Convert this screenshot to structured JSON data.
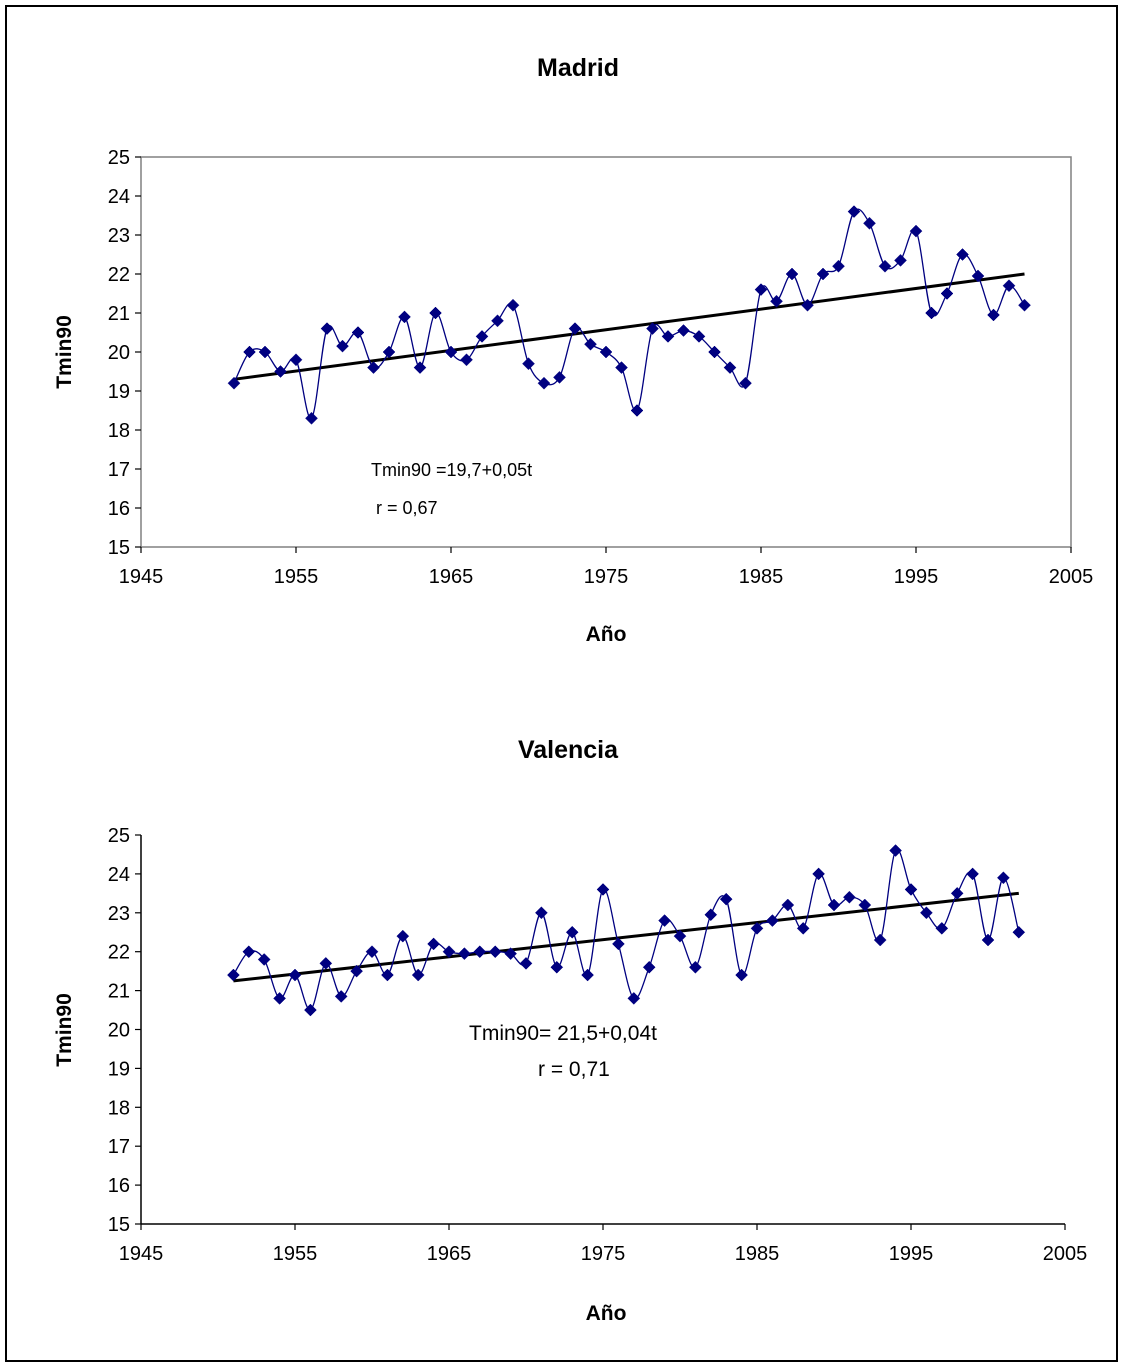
{
  "chart_data": [
    {
      "type": "line",
      "title": "Madrid",
      "xlabel": "Año",
      "ylabel": "Tmin90",
      "xlim": [
        1945,
        2005
      ],
      "ylim": [
        15,
        25
      ],
      "x_ticks": [
        "1945",
        "1955",
        "1965",
        "1975",
        "1985",
        "1995",
        "2005"
      ],
      "y_ticks": [
        "15",
        "16",
        "17",
        "18",
        "19",
        "20",
        "21",
        "22",
        "23",
        "24",
        "25"
      ],
      "series": [
        {
          "x": [
            1951,
            1952,
            1953,
            1954,
            1955,
            1956,
            1957,
            1958,
            1959,
            1960,
            1961,
            1962,
            1963,
            1964,
            1965,
            1966,
            1967,
            1968,
            1969,
            1970,
            1971,
            1972,
            1973,
            1974,
            1975,
            1976,
            1977,
            1978,
            1979,
            1980,
            1981,
            1982,
            1983,
            1984,
            1985,
            1986,
            1987,
            1988,
            1989,
            1990,
            1991,
            1992,
            1993,
            1994,
            1995,
            1996,
            1997,
            1998,
            1999,
            2000,
            2001,
            2002
          ],
          "values": [
            19.2,
            20.0,
            20.0,
            19.5,
            19.8,
            18.3,
            20.6,
            20.15,
            20.5,
            19.6,
            20.0,
            20.9,
            19.6,
            21.0,
            20.0,
            19.8,
            20.4,
            20.8,
            21.2,
            19.7,
            19.2,
            19.35,
            20.6,
            20.2,
            20.0,
            19.6,
            18.5,
            20.6,
            20.4,
            20.55,
            20.4,
            20.0,
            19.6,
            19.2,
            21.6,
            21.3,
            22.0,
            21.2,
            22.0,
            22.2,
            23.6,
            23.3,
            22.2,
            22.35,
            23.1,
            21.0,
            21.5,
            22.5,
            21.95,
            20.95,
            21.7,
            21.2
          ],
          "color": "#000080"
        }
      ],
      "trend": {
        "x": [
          1951,
          2002
        ],
        "y": [
          19.3,
          22.0
        ],
        "color": "#000000"
      },
      "annotations": [
        "Tmin90 =19,7+0,05t",
        "r = 0,67"
      ]
    },
    {
      "type": "line",
      "title": "Valencia",
      "xlabel": "Año",
      "ylabel": "Tmin90",
      "xlim": [
        1945,
        2005
      ],
      "ylim": [
        15,
        25
      ],
      "x_ticks": [
        "1945",
        "1955",
        "1965",
        "1975",
        "1985",
        "1995",
        "2005"
      ],
      "y_ticks": [
        "15",
        "16",
        "17",
        "18",
        "19",
        "20",
        "21",
        "22",
        "23",
        "24",
        "25"
      ],
      "series": [
        {
          "x": [
            1951,
            1952,
            1953,
            1954,
            1955,
            1956,
            1957,
            1958,
            1959,
            1960,
            1961,
            1962,
            1963,
            1964,
            1965,
            1966,
            1967,
            1968,
            1969,
            1970,
            1971,
            1972,
            1973,
            1974,
            1975,
            1976,
            1977,
            1978,
            1979,
            1980,
            1981,
            1982,
            1983,
            1984,
            1985,
            1986,
            1987,
            1988,
            1989,
            1990,
            1991,
            1992,
            1993,
            1994,
            1995,
            1996,
            1997,
            1998,
            1999,
            2000,
            2001,
            2002
          ],
          "values": [
            21.4,
            22.0,
            21.8,
            20.8,
            21.4,
            20.5,
            21.7,
            20.85,
            21.5,
            22.0,
            21.4,
            22.4,
            21.4,
            22.2,
            22.0,
            21.95,
            22.0,
            22.0,
            21.95,
            21.7,
            23.0,
            21.6,
            22.5,
            21.4,
            23.6,
            22.2,
            20.8,
            21.6,
            22.8,
            22.4,
            21.6,
            22.95,
            23.35,
            21.4,
            22.6,
            22.8,
            23.2,
            22.6,
            24.0,
            23.2,
            23.4,
            23.2,
            22.3,
            24.6,
            23.6,
            23.0,
            22.6,
            23.5,
            24.0,
            22.3,
            23.9,
            22.5
          ],
          "color": "#000080"
        }
      ],
      "trend": {
        "x": [
          1951,
          2002
        ],
        "y": [
          21.25,
          23.5
        ],
        "color": "#000000"
      },
      "annotations": [
        "Tmin90= 21,5+0,04t",
        "r = 0,71"
      ]
    }
  ]
}
